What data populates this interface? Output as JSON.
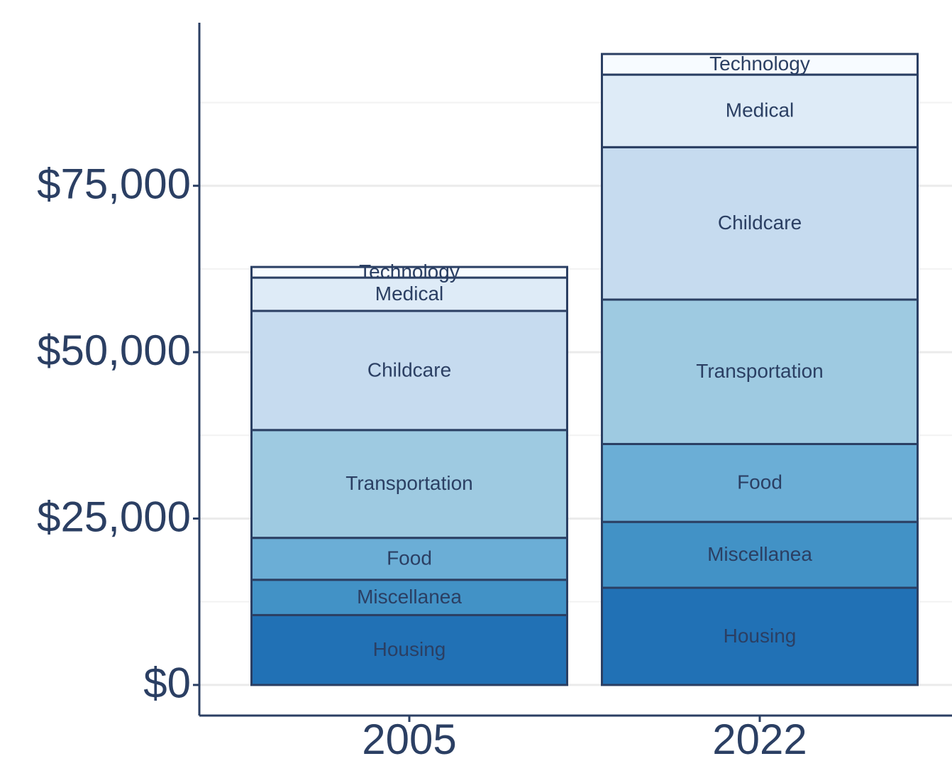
{
  "chart_data": {
    "type": "stacked_bar",
    "categories": [
      "2005",
      "2022"
    ],
    "series": [
      {
        "name": "Housing",
        "color": "#2171b5",
        "values": [
          10500,
          14600
        ]
      },
      {
        "name": "Miscellanea",
        "color": "#4292c6",
        "values": [
          5300,
          9900
        ]
      },
      {
        "name": "Food",
        "color": "#6baed6",
        "values": [
          6300,
          11700
        ]
      },
      {
        "name": "Transportation",
        "color": "#9ecae1",
        "values": [
          16200,
          21700
        ]
      },
      {
        "name": "Childcare",
        "color": "#c6dbef",
        "values": [
          17900,
          22900
        ]
      },
      {
        "name": "Medical",
        "color": "#deebf7",
        "values": [
          5000,
          10900
        ]
      },
      {
        "name": "Technology",
        "color": "#f7fbff",
        "values": [
          1600,
          3100
        ]
      }
    ],
    "ylim": [
      -4600,
      99500
    ],
    "yticks": [
      {
        "value": 0,
        "label": "$0"
      },
      {
        "value": 25000,
        "label": "$25,000"
      },
      {
        "value": 50000,
        "label": "$50,000"
      },
      {
        "value": 75000,
        "label": "$75,000"
      }
    ],
    "minor_yticks": [
      12500,
      37500,
      62500,
      87500
    ],
    "grid": true
  }
}
